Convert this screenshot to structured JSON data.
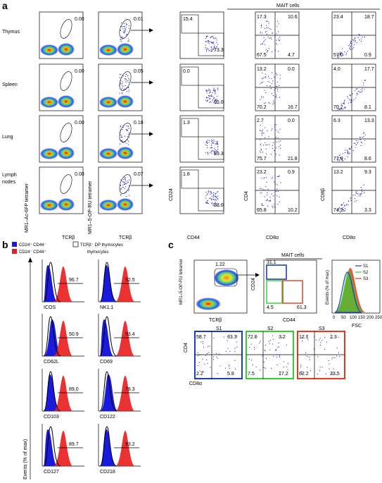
{
  "panel_letters": {
    "a": "a",
    "b": "b",
    "c": "c"
  },
  "a": {
    "mait_header": "MAIT cells",
    "row_labels": [
      "Thymus",
      "Spleen",
      "Lung",
      "Lymph nodes"
    ],
    "col1_gate": [
      "0.00",
      "0.00",
      "0.00",
      "0.00"
    ],
    "col2_gate": [
      "0.01",
      "0.05",
      "0.18",
      "0.07"
    ],
    "col3": [
      {
        "tl": "15.4",
        "br": "73.3"
      },
      {
        "tl": "0.0",
        "br": "95.0"
      },
      {
        "tl": "1.3",
        "br": "89.3"
      },
      {
        "tl": "1.8",
        "br": "83.0"
      }
    ],
    "col4": [
      {
        "tl": "17.3",
        "tr": "10.6",
        "bl": "67.5",
        "br": "4.7"
      },
      {
        "tl": "13.2",
        "tr": "0.0",
        "bl": "70.2",
        "br": "16.7"
      },
      {
        "tl": "2.7",
        "tr": "0.0",
        "bl": "75.7",
        "br": "21.8"
      },
      {
        "tl": "23.2",
        "tr": "0.9",
        "bl": "65.8",
        "br": "10.2"
      }
    ],
    "col5": [
      {
        "tl": "23.4",
        "tr": "18.7",
        "bl": "57.0",
        "br": "0.9"
      },
      {
        "tl": "4.0",
        "tr": "17.7",
        "bl": "70.2",
        "br": "8.1"
      },
      {
        "tl": "6.3",
        "tr": "13.3",
        "bl": "71.9",
        "br": "8.6"
      },
      {
        "tl": "13.2",
        "tr": "9.3",
        "bl": "74.2",
        "br": "3.3"
      }
    ],
    "y_labels": [
      "MR1–Ac-6FP tetramer",
      "MR1–5-OP-RU tetramer",
      "CD24",
      "CD4",
      "CD8β"
    ],
    "x_labels": [
      "TCRβ",
      "TCRβ",
      "CD44",
      "CD8α",
      "CD8α"
    ],
    "ticks": [
      "0",
      "10",
      "10³",
      "10⁴",
      "10⁵"
    ]
  },
  "b": {
    "legend": [
      "CD24⁺ CD44⁻",
      "CD24⁻ CD44⁺",
      "TCRβ⁻ DP thymocytes"
    ],
    "y_label": "Events (% of max)",
    "markers": [
      {
        "name": "ICOS",
        "value": "96.7"
      },
      {
        "name": "NK1.1",
        "value": "52.5"
      },
      {
        "name": "CD62L",
        "value": "50.9"
      },
      {
        "name": "CD69",
        "value": "93.4"
      },
      {
        "name": "CD103",
        "value": "89.0"
      },
      {
        "name": "CD122",
        "value": "78.3"
      },
      {
        "name": "CD127",
        "value": "89.7"
      },
      {
        "name": "CD218",
        "value": "93.2"
      }
    ],
    "colors": {
      "blue": "#1a1adc",
      "red": "#e81c1c",
      "black": "#000000"
    }
  },
  "c": {
    "mait_header": "MAIT cells",
    "p1": {
      "value": "1.22",
      "ylabel": "MR1–5-OP-RU tetramer",
      "xlabel": "TCRβ"
    },
    "p2": {
      "tl": "31.1",
      "bl": "4.5",
      "br": "61.3",
      "ylabel": "CD24",
      "xlabel": "CD44"
    },
    "p3": {
      "ylabel": "Events (% of max)",
      "xlabel": "FSC",
      "legend": [
        "S1",
        "S2",
        "S3"
      ],
      "ticks": [
        "0",
        "50",
        "100",
        "150",
        "200",
        "250"
      ]
    },
    "subsets": [
      {
        "name": "S1",
        "tl": "58.7",
        "tr": "33.3",
        "bl": "2.2",
        "br": "5.8",
        "color": "#1a3dbd"
      },
      {
        "name": "S2",
        "tl": "72.0",
        "tr": "3.2",
        "bl": "7.5",
        "br": "17.2",
        "color": "#2fd12f"
      },
      {
        "name": "S3",
        "tl": "12.1",
        "tr": "2.3",
        "bl": "62.2",
        "br": "23.5",
        "color": "#e8391a"
      }
    ],
    "ylabel": "CD4",
    "xlabel": "CD8α"
  }
}
